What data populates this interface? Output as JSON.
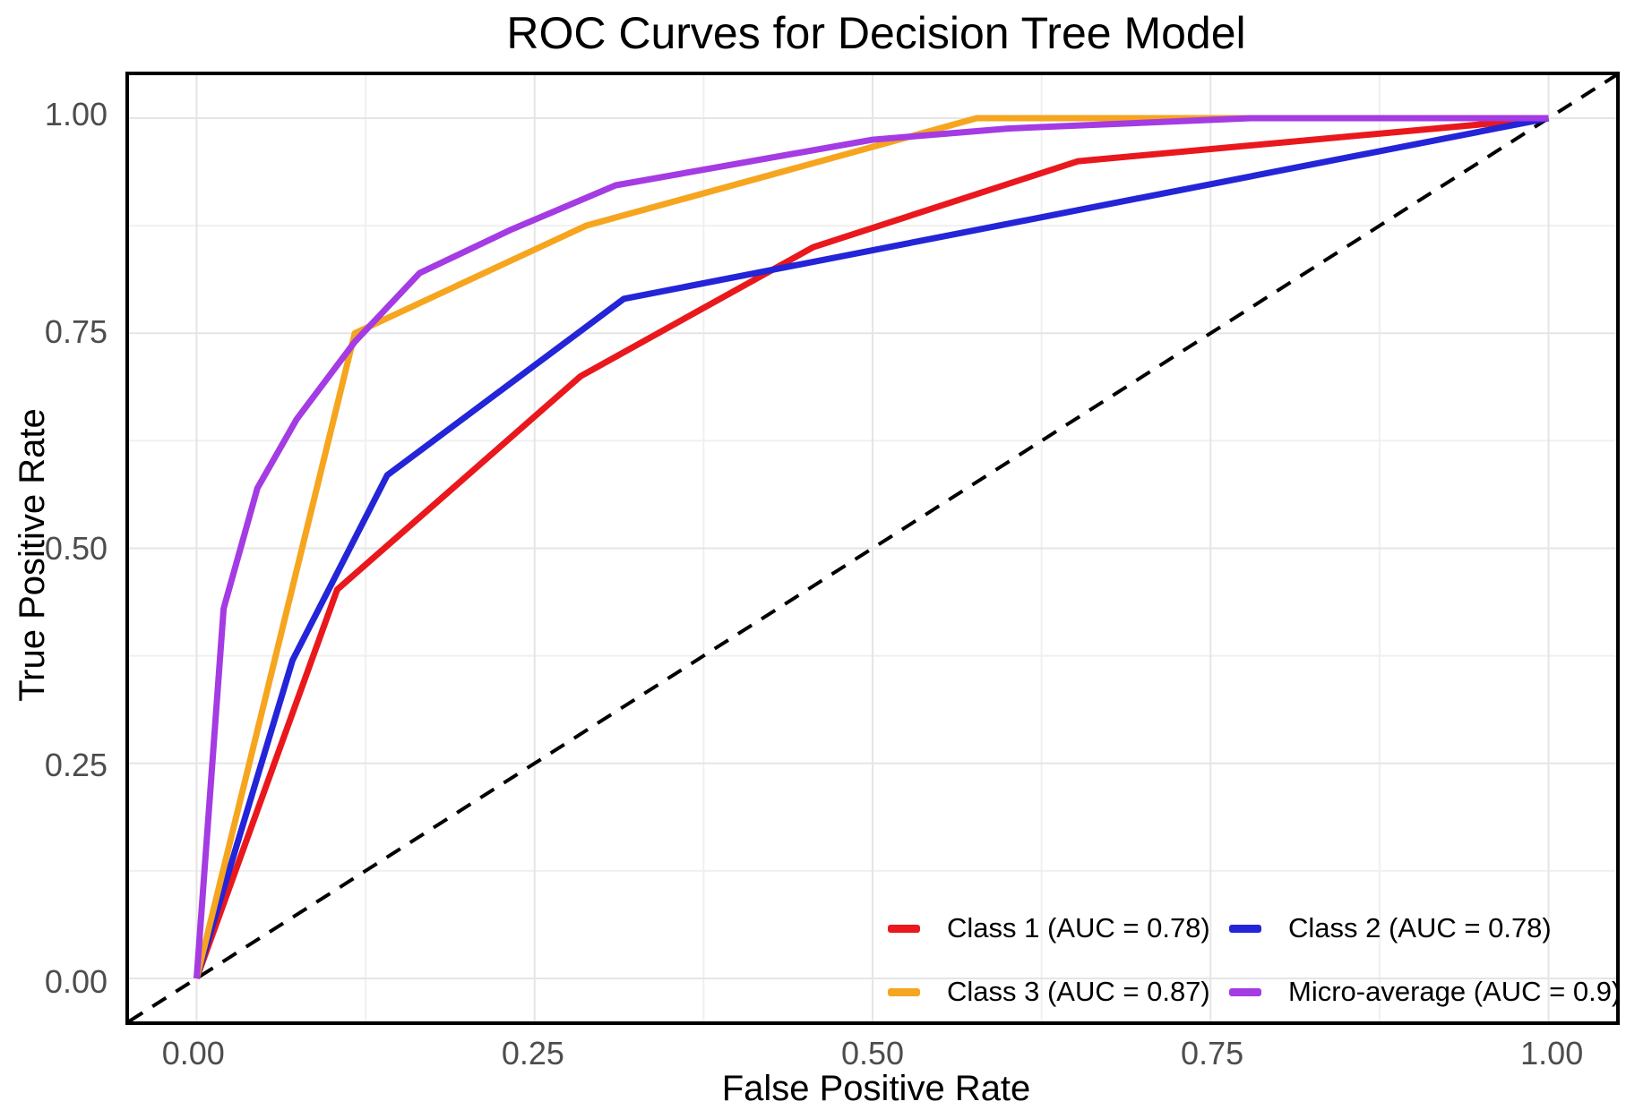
{
  "title": "ROC Curves for Decision Tree Model",
  "axes": {
    "x": {
      "label": "False Positive Rate",
      "ticks": [
        {
          "label": "0.00",
          "value": 0
        },
        {
          "label": "0.25",
          "value": 0.25
        },
        {
          "label": "0.50",
          "value": 0.5
        },
        {
          "label": "0.75",
          "value": 0.75
        },
        {
          "label": "1.00",
          "value": 1
        }
      ]
    },
    "y": {
      "label": "True Positive Rate",
      "ticks": [
        {
          "label": "0.00",
          "value": 0
        },
        {
          "label": "0.25",
          "value": 0.25
        },
        {
          "label": "0.50",
          "value": 0.5
        },
        {
          "label": "0.75",
          "value": 0.75
        },
        {
          "label": "1.00",
          "value": 1
        }
      ]
    }
  },
  "chart_data": {
    "type": "line",
    "title": "ROC Curves for Decision Tree Model",
    "xlabel": "False Positive Rate",
    "ylabel": "True Positive Rate",
    "xlim": [
      -0.05,
      1.05
    ],
    "ylim": [
      -0.05,
      1.05
    ],
    "grid": {
      "on": true,
      "major": [
        0,
        0.25,
        0.5,
        0.75,
        1
      ],
      "minor": [
        0.125,
        0.375,
        0.625,
        0.875
      ]
    },
    "reference_line": {
      "name": "chance diagonal",
      "style": "dashed",
      "color": "#000000",
      "from": [
        -0.05,
        -0.05
      ],
      "to": [
        1.05,
        1.05
      ]
    },
    "legend": {
      "position": "bottom-right",
      "columns": 2
    },
    "series": [
      {
        "name": "Class 1 (AUC = 0.78)",
        "auc": 0.78,
        "color": "#e9181d",
        "points": [
          [
            0,
            0
          ],
          [
            0.104,
            0.452
          ],
          [
            0.284,
            0.7
          ],
          [
            0.456,
            0.85
          ],
          [
            0.652,
            0.95
          ],
          [
            1,
            1
          ]
        ]
      },
      {
        "name": "Class 2 (AUC = 0.78)",
        "auc": 0.78,
        "color": "#2424d8",
        "points": [
          [
            0,
            0
          ],
          [
            0.071,
            0.37
          ],
          [
            0.141,
            0.585
          ],
          [
            0.316,
            0.79
          ],
          [
            1,
            1
          ]
        ]
      },
      {
        "name": "Class 3 (AUC = 0.87)",
        "auc": 0.87,
        "color": "#f6a51f",
        "points": [
          [
            0,
            0
          ],
          [
            0.117,
            0.75
          ],
          [
            0.288,
            0.875
          ],
          [
            0.577,
            1
          ],
          [
            1,
            1
          ]
        ]
      },
      {
        "name": "Micro-average (AUC = 0.9)",
        "auc": 0.9,
        "color": "#a43be3",
        "points": [
          [
            0,
            0
          ],
          [
            0.02,
            0.43
          ],
          [
            0.045,
            0.57
          ],
          [
            0.074,
            0.65
          ],
          [
            0.117,
            0.74
          ],
          [
            0.165,
            0.82
          ],
          [
            0.232,
            0.87
          ],
          [
            0.31,
            0.922
          ],
          [
            0.5,
            0.975
          ],
          [
            0.6,
            0.988
          ],
          [
            0.78,
            1
          ],
          [
            1,
            1
          ]
        ]
      }
    ]
  },
  "colors": {
    "background": "#ffffff",
    "panel_border": "#000000",
    "grid_major": "#e5e5e5",
    "grid_minor": "#f0f0f0",
    "tick_label": "#4d4d4d",
    "text": "#000000"
  }
}
